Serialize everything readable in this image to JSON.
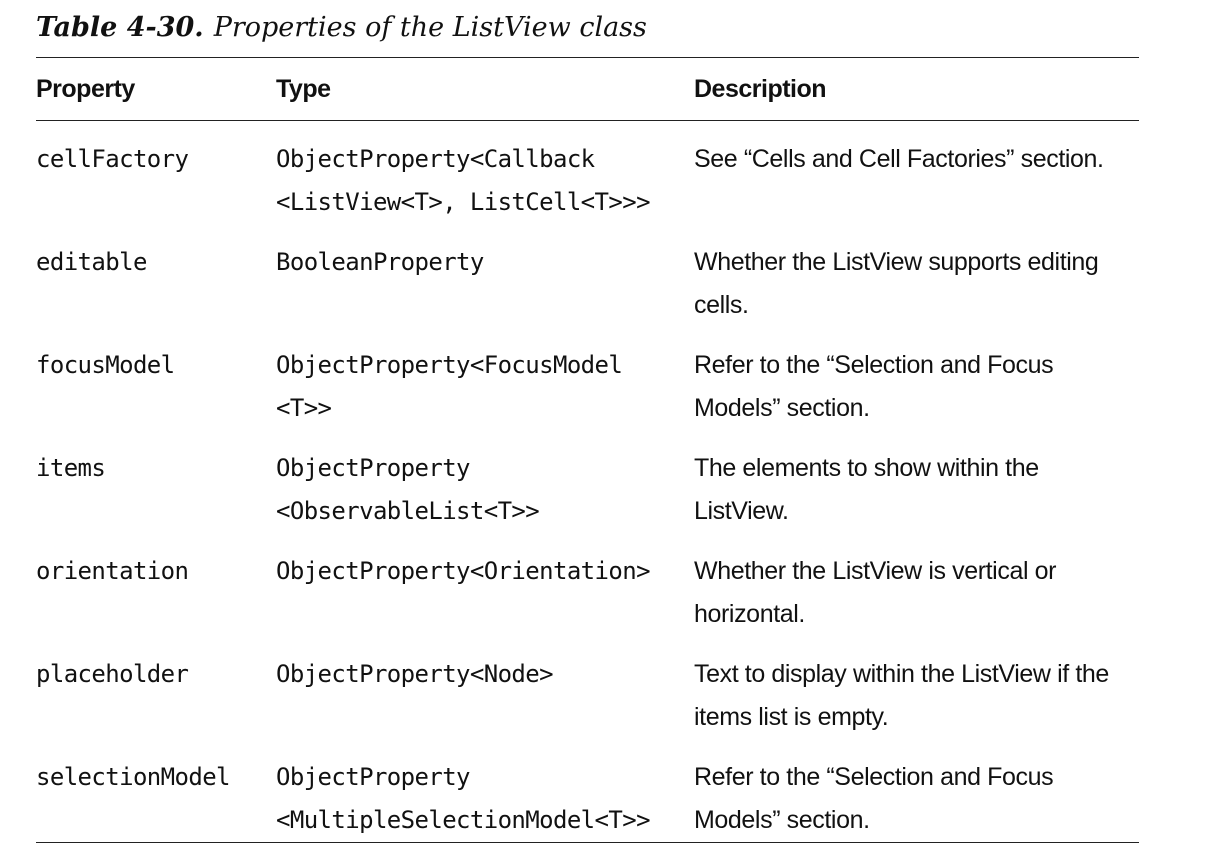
{
  "caption": {
    "number": "Table 4-30.",
    "title": "Properties of the ListView class"
  },
  "table": {
    "headers": [
      "Property",
      "Type",
      "Description"
    ],
    "rows": [
      {
        "property": "cellFactory",
        "type": [
          "ObjectProperty<Callback",
          "<ListView<T>, ListCell<T>>>"
        ],
        "description": [
          "See “Cells and Cell Factories” section."
        ]
      },
      {
        "property": "editable",
        "type": [
          "BooleanProperty"
        ],
        "description": [
          "Whether the ListView supports editing",
          "cells."
        ]
      },
      {
        "property": "focusModel",
        "type": [
          "ObjectProperty<FocusModel",
          "<T>>"
        ],
        "description": [
          "Refer to the “Selection and Focus",
          "Models” section."
        ]
      },
      {
        "property": "items",
        "type": [
          "ObjectProperty",
          "<ObservableList<T>>"
        ],
        "description": [
          "The elements to show within the",
          "ListView."
        ]
      },
      {
        "property": "orientation",
        "type": [
          "ObjectProperty<Orientation>"
        ],
        "description": [
          "Whether the ListView is vertical or",
          "horizontal."
        ]
      },
      {
        "property": "placeholder",
        "type": [
          "ObjectProperty<Node>"
        ],
        "description": [
          "Text to display within the ListView if the",
          "items list is empty."
        ]
      },
      {
        "property": "selectionModel",
        "type": [
          "ObjectProperty",
          "<MultipleSelectionModel<T>>"
        ],
        "description": [
          "Refer to the “Selection and Focus",
          "Models” section."
        ]
      }
    ]
  }
}
